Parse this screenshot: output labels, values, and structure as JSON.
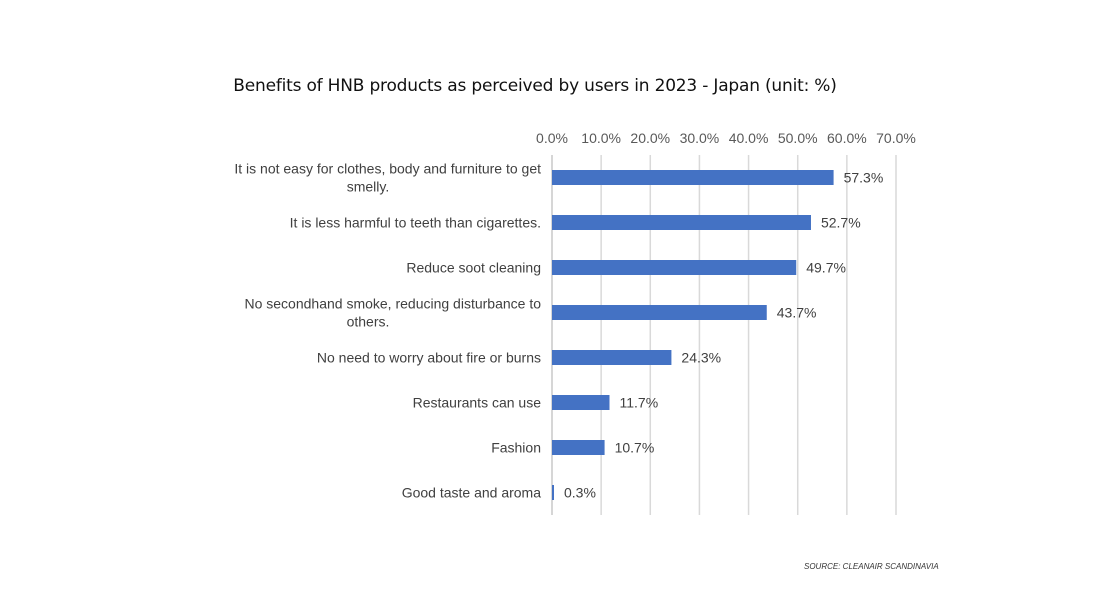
{
  "chart_data": {
    "type": "bar",
    "orientation": "horizontal",
    "title": "Benefits of HNB products as perceived by users in 2023 - Japan (unit: %)",
    "xlabel": "",
    "ylabel": "",
    "xlim": [
      0,
      70
    ],
    "x_ticks": [
      "0.0%",
      "10.0%",
      "20.0%",
      "30.0%",
      "40.0%",
      "50.0%",
      "60.0%",
      "70.0%"
    ],
    "x_tick_values": [
      0,
      10,
      20,
      30,
      40,
      50,
      60,
      70
    ],
    "x_axis_position": "top",
    "grid": true,
    "categories": [
      [
        "It is not easy for clothes, body and furniture to get",
        "smelly."
      ],
      [
        "It is less harmful to teeth than cigarettes."
      ],
      [
        "Reduce soot cleaning"
      ],
      [
        "No secondhand smoke, reducing disturbance to",
        "others."
      ],
      [
        "No need to worry about fire or burns"
      ],
      [
        "Restaurants can use"
      ],
      [
        "Fashion"
      ],
      [
        "Good taste and aroma"
      ]
    ],
    "values": [
      57.3,
      52.7,
      49.7,
      43.7,
      24.3,
      11.7,
      10.7,
      0.3
    ],
    "data_labels": [
      "57.3%",
      "52.7%",
      "49.7%",
      "43.7%",
      "24.3%",
      "11.7%",
      "10.7%",
      "0.3%"
    ],
    "bar_color": "#4472c4",
    "grid_color": "#d9d9d9",
    "legend": "none"
  },
  "source": "SOURCE: CLEANAIR SCANDINAVIA"
}
